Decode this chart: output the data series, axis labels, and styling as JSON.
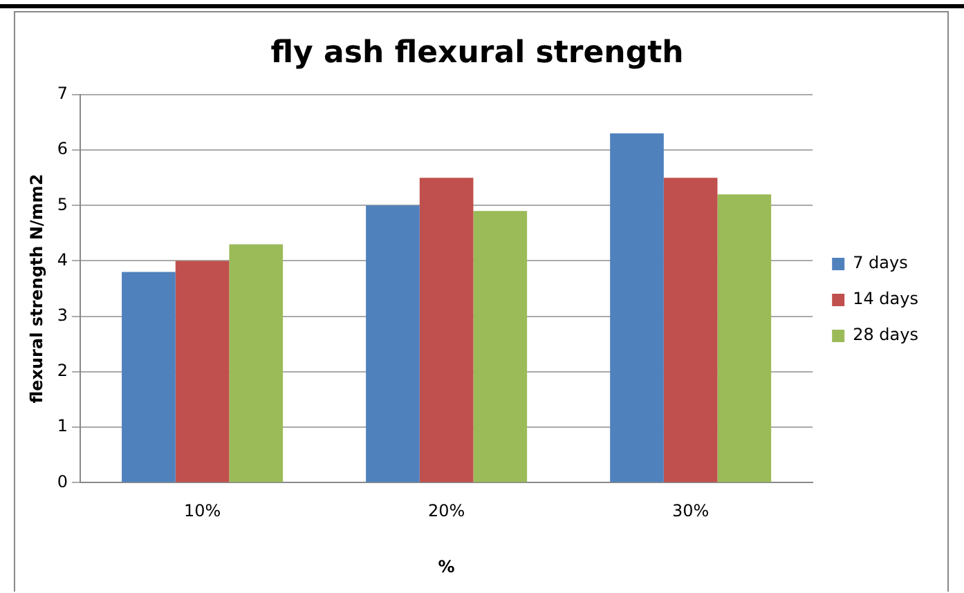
{
  "chart_data": {
    "type": "bar",
    "title": "fly ash flexural strength",
    "xlabel": "%",
    "ylabel": "flexural strength N/mm2",
    "categories": [
      "10%",
      "20%",
      "30%"
    ],
    "series": [
      {
        "name": "7 days",
        "color": "#4f81bd",
        "values": [
          3.8,
          5.0,
          6.3
        ]
      },
      {
        "name": "14 days",
        "color": "#c0504d",
        "values": [
          4.0,
          5.5,
          5.5
        ]
      },
      {
        "name": "28 days",
        "color": "#9bbb59",
        "values": [
          4.3,
          4.9,
          5.2
        ]
      }
    ],
    "ylim": [
      0,
      7
    ],
    "yticks": [
      0,
      1,
      2,
      3,
      4,
      5,
      6,
      7
    ],
    "grid": "y",
    "legend": "right"
  }
}
